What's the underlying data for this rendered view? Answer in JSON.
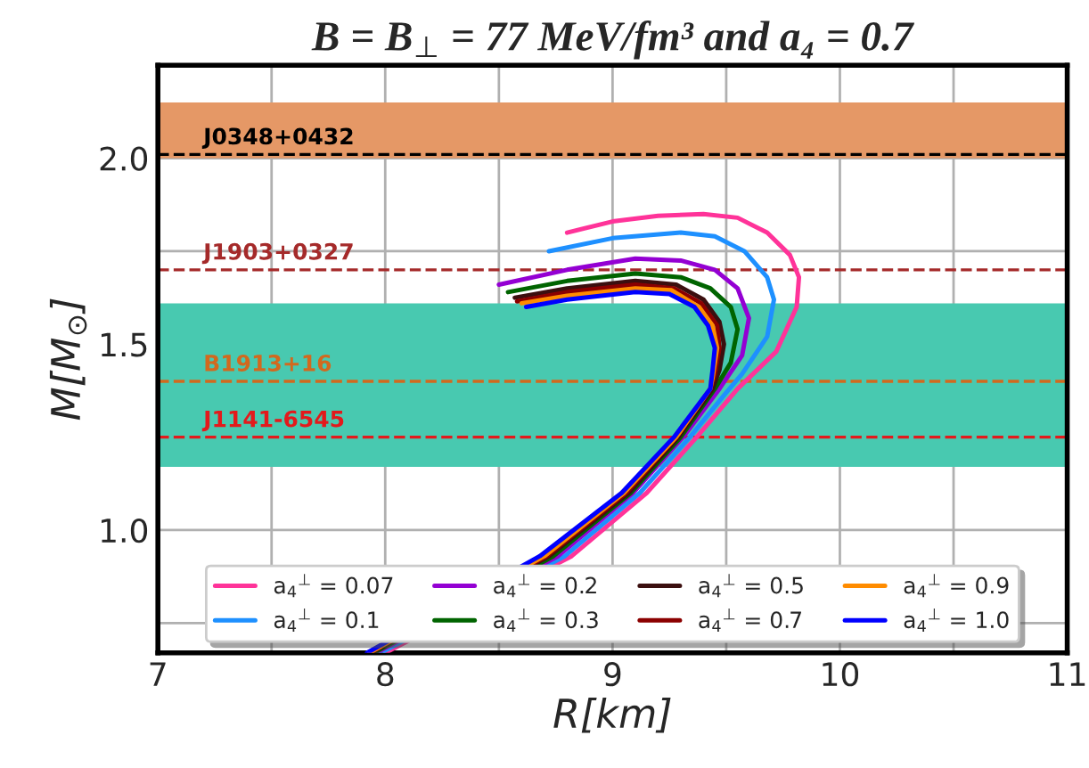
{
  "chart_data": {
    "type": "line",
    "title": "B = B$_{⊥}$ = 77 MeV/fm³ and a₄ = 0.7",
    "xlabel": "R[km]",
    "ylabel": "M[M$_{⊙}$]",
    "xlim": [
      7,
      11
    ],
    "ylim": [
      0.67,
      2.25
    ],
    "xticks": [
      7,
      {
        "value": 7.5,
        "label": null
      },
      8,
      {
        "value": 8.5,
        "label": null
      },
      9,
      {
        "value": 9.5,
        "label": null
      },
      10,
      {
        "value": 10.5,
        "label": null
      },
      11
    ],
    "yticks": [
      {
        "value": 0.75,
        "label": null
      },
      {
        "value": 1.0,
        "label": "1.0"
      },
      {
        "value": 1.25,
        "label": null
      },
      {
        "value": 1.5,
        "label": "1.5"
      },
      {
        "value": 1.75,
        "label": null
      },
      {
        "value": 2.0,
        "label": "2.0"
      }
    ],
    "grid": true,
    "legend": "bottom",
    "line_style": "solid",
    "marker": "none",
    "bands": [
      {
        "axis": "y",
        "from": 2.0,
        "to": 2.15,
        "color": "#e59866"
      },
      {
        "axis": "y",
        "from": 1.17,
        "to": 1.61,
        "color": "#48c9b0"
      }
    ],
    "ref_lines": [
      {
        "axis": "y",
        "value": 2.01,
        "label": "J0348+0432",
        "color": "#000000",
        "line_style": "dashed"
      },
      {
        "axis": "y",
        "value": 1.7,
        "label": "J1903+0327",
        "color": "#a52a2a",
        "line_style": "dashed"
      },
      {
        "axis": "y",
        "value": 1.4,
        "label": "B1913+16",
        "color": "#d2691e",
        "line_style": "dashed"
      },
      {
        "axis": "y",
        "value": 1.25,
        "label": "J1141-6545",
        "color": "#e31a1c",
        "line_style": "dashed"
      }
    ],
    "series": [
      {
        "name": "a$_{4}$$^{⊥}$ = 0.07",
        "color": "#ff3399",
        "x": [
          8.8,
          9.0,
          9.2,
          9.4,
          9.55,
          9.68,
          9.78,
          9.82,
          9.81,
          9.72,
          9.55,
          9.37,
          9.15,
          8.82,
          8.0
        ],
        "values": [
          1.8,
          1.83,
          1.845,
          1.85,
          1.84,
          1.8,
          1.74,
          1.68,
          1.6,
          1.48,
          1.38,
          1.25,
          1.1,
          0.93,
          0.67
        ]
      },
      {
        "name": "a$_{4}$$^{⊥}$ = 0.1",
        "color": "#1e90ff",
        "x": [
          8.72,
          9.0,
          9.3,
          9.45,
          9.58,
          9.68,
          9.71,
          9.68,
          9.57,
          9.5,
          9.34,
          9.12,
          8.79,
          7.98
        ],
        "values": [
          1.75,
          1.785,
          1.8,
          1.79,
          1.75,
          1.68,
          1.62,
          1.52,
          1.42,
          1.37,
          1.25,
          1.1,
          0.93,
          0.67
        ]
      },
      {
        "name": "a$_{4}$$^{⊥}$ = 0.2",
        "color": "#9400d3",
        "x": [
          8.5,
          8.8,
          9.1,
          9.3,
          9.45,
          9.55,
          9.6,
          9.57,
          9.47,
          9.31,
          9.09,
          8.76,
          7.96
        ],
        "values": [
          1.66,
          1.7,
          1.73,
          1.725,
          1.7,
          1.65,
          1.57,
          1.47,
          1.38,
          1.25,
          1.1,
          0.93,
          0.67
        ]
      },
      {
        "name": "a$_{4}$$^{⊥}$ = 0.3",
        "color": "#006400",
        "x": [
          8.54,
          8.8,
          9.1,
          9.3,
          9.43,
          9.52,
          9.55,
          9.52,
          9.45,
          9.3,
          9.08,
          8.74,
          7.95
        ],
        "values": [
          1.64,
          1.67,
          1.69,
          1.68,
          1.65,
          1.6,
          1.54,
          1.45,
          1.38,
          1.25,
          1.1,
          0.93,
          0.67
        ]
      },
      {
        "name": "a$_{4}$$^{⊥}$ = 0.5",
        "color": "#3b0f0f",
        "x": [
          8.57,
          8.8,
          9.1,
          9.28,
          9.4,
          9.47,
          9.49,
          9.47,
          9.44,
          9.29,
          9.07,
          8.72,
          7.94
        ],
        "values": [
          1.625,
          1.65,
          1.67,
          1.66,
          1.62,
          1.56,
          1.5,
          1.43,
          1.38,
          1.25,
          1.1,
          0.93,
          0.67
        ]
      },
      {
        "name": "a$_{4}$$^{⊥}$ = 0.7",
        "color": "#8b0000",
        "x": [
          8.58,
          8.8,
          9.1,
          9.27,
          9.39,
          9.46,
          9.47,
          9.45,
          9.43,
          9.28,
          9.06,
          8.71,
          7.93
        ],
        "values": [
          1.615,
          1.64,
          1.66,
          1.65,
          1.61,
          1.55,
          1.49,
          1.42,
          1.38,
          1.25,
          1.1,
          0.93,
          0.67
        ]
      },
      {
        "name": "a$_{4}$$^{⊥}$ = 0.9",
        "color": "#ff8c00",
        "x": [
          8.6,
          8.8,
          9.1,
          9.26,
          9.38,
          9.44,
          9.46,
          9.44,
          9.43,
          9.28,
          9.05,
          8.7,
          7.93
        ],
        "values": [
          1.61,
          1.63,
          1.65,
          1.645,
          1.6,
          1.55,
          1.49,
          1.41,
          1.38,
          1.25,
          1.1,
          0.93,
          0.67
        ]
      },
      {
        "name": "a$_{4}$$^{⊥}$ = 1.0",
        "color": "#0000ff",
        "x": [
          8.62,
          8.8,
          9.1,
          9.25,
          9.36,
          9.42,
          9.45,
          9.44,
          9.43,
          9.27,
          9.04,
          8.68,
          7.92
        ],
        "values": [
          1.6,
          1.62,
          1.64,
          1.635,
          1.6,
          1.55,
          1.49,
          1.43,
          1.38,
          1.25,
          1.1,
          0.93,
          0.67
        ]
      }
    ]
  }
}
